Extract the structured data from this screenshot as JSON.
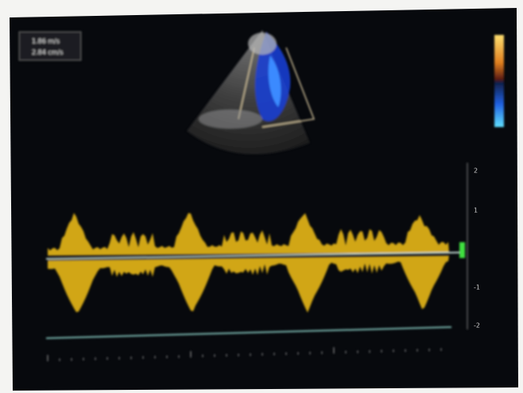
{
  "overlay": {
    "lines": [
      "1.86 m/s",
      "2.84 cm/s"
    ]
  },
  "scale": {
    "labels": [
      "2",
      "1",
      "-1",
      "-2"
    ]
  }
}
